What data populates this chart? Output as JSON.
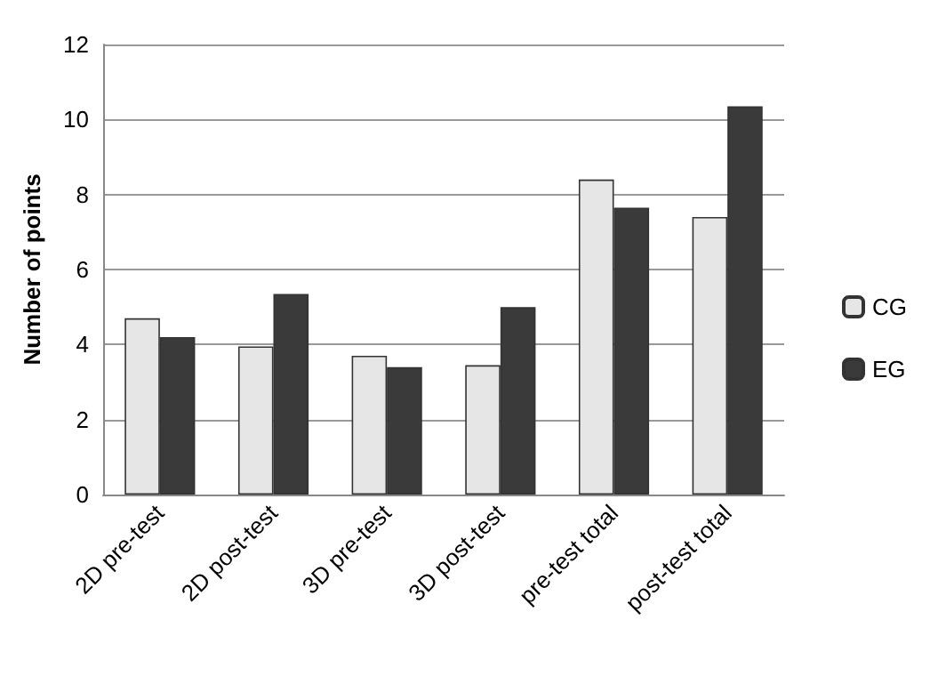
{
  "chart_data": {
    "type": "bar",
    "ylabel": "Number of points",
    "categories": [
      "2D pre-test",
      "2D post-test",
      "3D pre-test",
      "3D post-test",
      "pre-test total",
      "post-test total"
    ],
    "series": [
      {
        "name": "CG",
        "color": "#e6e6e6",
        "values": [
          4.7,
          3.95,
          3.7,
          3.45,
          8.4,
          7.4
        ]
      },
      {
        "name": "EG",
        "color": "#3a3a3a",
        "values": [
          4.2,
          5.35,
          3.4,
          5.0,
          7.65,
          10.35
        ]
      }
    ],
    "ylim": [
      0,
      12
    ],
    "yticks": [
      0,
      2,
      4,
      6,
      8,
      10,
      12
    ],
    "grid": "y",
    "legend": "right"
  }
}
